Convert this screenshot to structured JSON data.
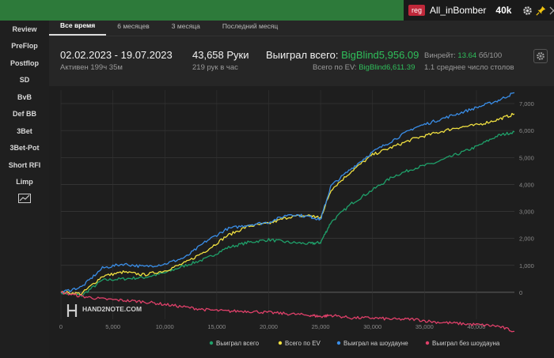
{
  "topbar": {
    "badge": "reg",
    "username": "All_inBomber",
    "stake": "40k",
    "icons": [
      "gear-icon",
      "pin-icon",
      "close-icon"
    ]
  },
  "sidebar": {
    "items": [
      {
        "label": "Review"
      },
      {
        "label": "PreFlop"
      },
      {
        "label": "Postflop"
      },
      {
        "label": "SD"
      },
      {
        "label": "BvB"
      },
      {
        "label": "Def BB"
      },
      {
        "label": "3Bet"
      },
      {
        "label": "3Bet-Pot"
      },
      {
        "label": "Short RFI"
      },
      {
        "label": "Limp"
      }
    ],
    "chart_icon": "line-chart-icon"
  },
  "tabs": [
    {
      "label": "Все время",
      "active": true
    },
    {
      "label": "6 месяцев",
      "active": false
    },
    {
      "label": "3 месяца",
      "active": false
    },
    {
      "label": "Последний месяц",
      "active": false
    }
  ],
  "stats": {
    "date_range": "02.02.2023 - 19.07.2023",
    "active": "Активен 199ч 35м",
    "hands": "43,658 Руки",
    "hands_per_hour": "219 рук в час",
    "won_label": "Выиграл всего:",
    "won_value": "BigBlind5,956.09",
    "ev_label": "Всего по EV:",
    "ev_value": "BigBlind6,611.39",
    "winrate_label": "Винрейт:",
    "winrate_value": "13.64",
    "winrate_unit": "бб/100",
    "tables": "1.1 среднее число столов"
  },
  "colors": {
    "accent": "#2d7a3a",
    "won_total": "#1fa06a",
    "ev_total": "#f0e040",
    "showdown": "#3a8ee8",
    "non_showdown": "#e0406a"
  },
  "chart_data": {
    "type": "line",
    "watermark": "HAND2NOTE.COM",
    "xlim": [
      0,
      43658
    ],
    "ylim": [
      -1000,
      7500
    ],
    "x_ticks": [
      "0",
      "5,000",
      "10,000",
      "15,000",
      "20,000",
      "25,000",
      "30,000",
      "35,000",
      "40,000"
    ],
    "y_ticks": [
      "0",
      "1,000",
      "2,000",
      "3,000",
      "4,000",
      "5,000",
      "6,000",
      "7,000"
    ],
    "x": [
      0,
      2000,
      4000,
      6000,
      8000,
      10000,
      12000,
      14000,
      16000,
      18000,
      20000,
      22000,
      24000,
      25000,
      26000,
      28000,
      30000,
      32000,
      34000,
      36000,
      38000,
      40000,
      42000,
      43658
    ],
    "series": [
      {
        "name": "Выиграл всего",
        "color": "#1fa06a",
        "values": [
          0,
          -120,
          450,
          500,
          550,
          720,
          1000,
          1250,
          1650,
          1850,
          1950,
          1850,
          1800,
          1850,
          2600,
          3300,
          3800,
          4300,
          4600,
          4800,
          5100,
          5400,
          5800,
          5956
        ]
      },
      {
        "name": "Всего по EV",
        "color": "#f0e040",
        "values": [
          0,
          -50,
          600,
          750,
          650,
          800,
          1100,
          1550,
          2100,
          2450,
          2550,
          2800,
          2850,
          2750,
          3800,
          4500,
          5100,
          5400,
          5700,
          5900,
          6100,
          6200,
          6400,
          6611
        ]
      },
      {
        "name": "Выиграл на шоудауне",
        "color": "#3a8ee8",
        "values": [
          0,
          200,
          900,
          1050,
          950,
          1050,
          1300,
          1900,
          2350,
          2500,
          2600,
          2900,
          2800,
          2700,
          3950,
          4600,
          5200,
          5650,
          6100,
          6350,
          6600,
          6850,
          7100,
          7400
        ]
      },
      {
        "name": "Выиграл без шоудауна",
        "color": "#e0406a",
        "values": [
          0,
          -150,
          -250,
          -300,
          -350,
          -450,
          -550,
          -650,
          -700,
          -700,
          -750,
          -800,
          -850,
          -900,
          -850,
          -950,
          -950,
          -1000,
          -1000,
          -1100,
          -1150,
          -1200,
          -1250,
          -1450
        ]
      }
    ],
    "legend": [
      "Выиграл всего",
      "Всего по EV",
      "Выиграл на шоудауне",
      "Выиграл без шоудауна"
    ],
    "legend_position": "bottom-right",
    "grid": true
  }
}
